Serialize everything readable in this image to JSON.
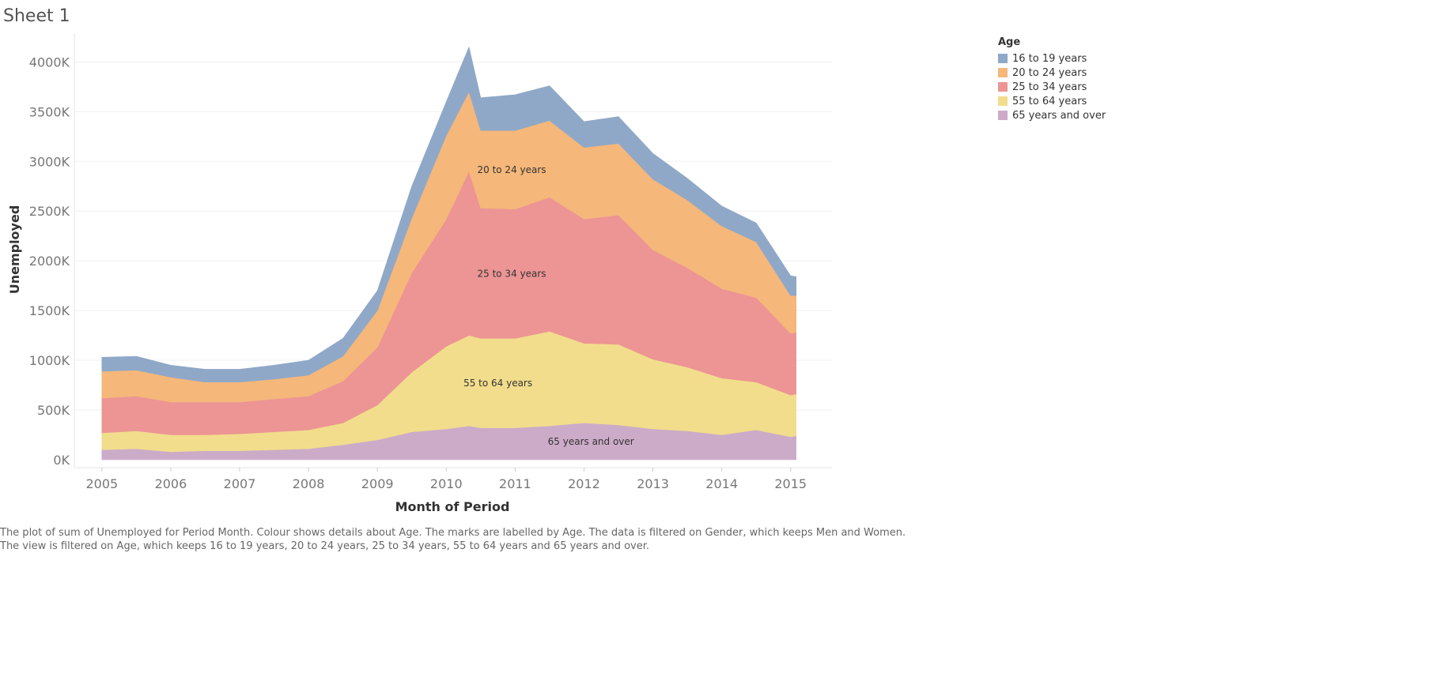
{
  "sheet_title": "Sheet 1",
  "legend": {
    "title": "Age",
    "items": [
      {
        "label": "16 to 19 years",
        "color": "#8fa8c8"
      },
      {
        "label": "20 to 24 years",
        "color": "#f5b77a"
      },
      {
        "label": "25 to 34 years",
        "color": "#ec9594"
      },
      {
        "label": "55 to 64 years",
        "color": "#f2dd8c"
      },
      {
        "label": "65 years and over",
        "color": "#ccabc8"
      }
    ]
  },
  "caption": {
    "line1": "The plot of sum of Unemployed for Period Month.  Colour shows details about Age.  The marks are labelled by Age. The data is filtered on Gender, which keeps Men and Women.",
    "line2": "The view is filtered on Age, which keeps 16 to 19 years, 20 to 24 years, 25 to 34 years, 55 to 64 years and 65 years and over."
  },
  "chart_data": {
    "type": "area",
    "stacked": true,
    "xlabel": "Month of Period",
    "ylabel": "Unemployed",
    "x_ticks": [
      "2005",
      "2006",
      "2007",
      "2008",
      "2009",
      "2010",
      "2011",
      "2012",
      "2013",
      "2014",
      "2015"
    ],
    "y_ticks": [
      "0K",
      "500K",
      "1000K",
      "1500K",
      "2000K",
      "2500K",
      "3000K",
      "3500K",
      "4000K"
    ],
    "ylim": [
      0,
      4200
    ],
    "y_unit": "thousands",
    "grid": true,
    "legend_position": "right",
    "x": [
      2005.0,
      2005.5,
      2006.0,
      2006.5,
      2007.0,
      2007.5,
      2008.0,
      2008.5,
      2009.0,
      2009.5,
      2010.0,
      2010.33,
      2010.5,
      2011.0,
      2011.5,
      2012.0,
      2012.5,
      2013.0,
      2013.5,
      2014.0,
      2014.5,
      2015.0,
      2015.08
    ],
    "series": [
      {
        "name": "65 years and over",
        "values": [
          100,
          110,
          80,
          90,
          90,
          100,
          110,
          150,
          200,
          280,
          310,
          340,
          320,
          320,
          340,
          370,
          350,
          310,
          290,
          250,
          300,
          230,
          240
        ]
      },
      {
        "name": "55 to 64 years",
        "values": [
          170,
          180,
          170,
          160,
          170,
          180,
          190,
          220,
          350,
          600,
          830,
          910,
          900,
          900,
          950,
          800,
          810,
          700,
          640,
          570,
          480,
          420,
          420
        ]
      },
      {
        "name": "25 to 34 years",
        "values": [
          350,
          350,
          330,
          330,
          320,
          330,
          340,
          420,
          580,
          1000,
          1280,
          1650,
          1310,
          1300,
          1350,
          1250,
          1300,
          1100,
          1000,
          900,
          850,
          620,
          620
        ]
      },
      {
        "name": "20 to 24 years",
        "values": [
          270,
          260,
          250,
          200,
          200,
          200,
          210,
          250,
          370,
          550,
          840,
          800,
          780,
          790,
          770,
          720,
          720,
          710,
          680,
          630,
          560,
          380,
          370
        ]
      },
      {
        "name": "16 to 19 years",
        "values": [
          140,
          140,
          120,
          130,
          130,
          140,
          150,
          180,
          200,
          320,
          340,
          450,
          330,
          360,
          350,
          260,
          270,
          260,
          220,
          200,
          190,
          200,
          190
        ]
      }
    ],
    "annotations": [
      "20 to 24 years",
      "25 to 34 years",
      "55 to 64 years",
      "65 years and over"
    ]
  }
}
